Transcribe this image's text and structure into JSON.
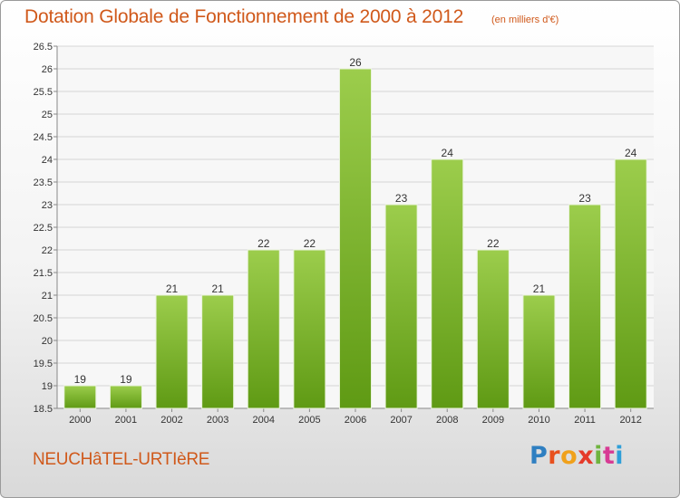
{
  "header": {
    "title": "Dotation Globale de Fonctionnement de 2000 à 2012",
    "unit": "(en milliers d'€)"
  },
  "footer": {
    "commune": "NEUCHâTEL-URTIèRE",
    "logo": {
      "letters": [
        "P",
        "r",
        "o",
        "x",
        "i",
        "t",
        "i"
      ],
      "colors": [
        "#2f7fc1",
        "#e8501e",
        "#f0a11b",
        "#e53a2a",
        "#6fb43f",
        "#d73b94",
        "#2f9fd8"
      ]
    }
  },
  "chart_data": {
    "type": "bar",
    "title": "Dotation Globale de Fonctionnement de 2000 à 2012",
    "subtitle": "(en milliers d'€)",
    "categories": [
      "2000",
      "2001",
      "2002",
      "2003",
      "2004",
      "2005",
      "2006",
      "2007",
      "2008",
      "2009",
      "2010",
      "2011",
      "2012"
    ],
    "values": [
      19,
      19,
      21,
      21,
      22,
      22,
      26,
      23,
      24,
      22,
      21,
      23,
      24
    ],
    "ylim": [
      18.5,
      26.5
    ],
    "yticks": [
      "18.5",
      "19",
      "19.5",
      "20",
      "20.5",
      "21",
      "21.5",
      "22",
      "22.5",
      "23",
      "23.5",
      "24",
      "24.5",
      "25",
      "25.5",
      "26",
      "26.5"
    ],
    "grid": true,
    "bar_color": "#7cb82f"
  }
}
